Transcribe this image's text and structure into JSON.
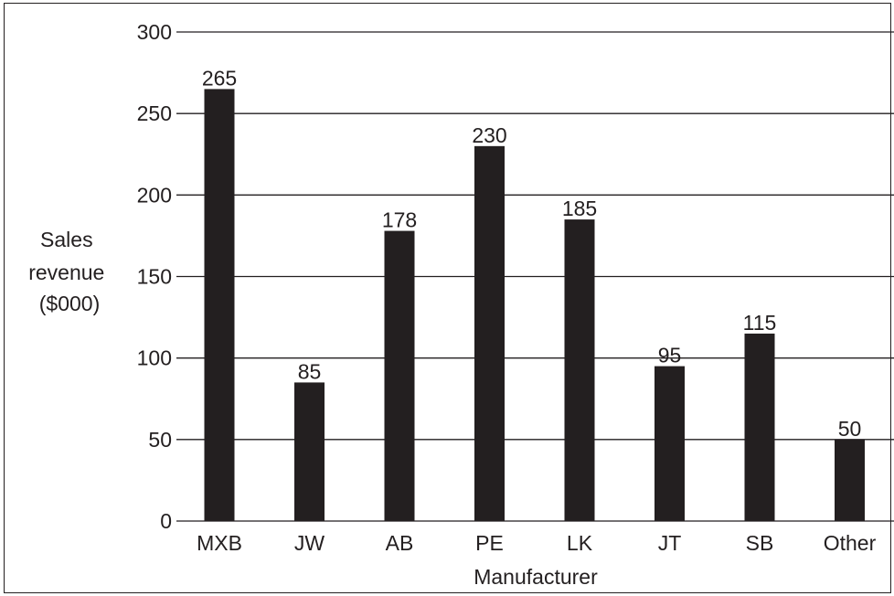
{
  "chart_data": {
    "type": "bar",
    "categories": [
      "MXB",
      "JW",
      "AB",
      "PE",
      "LK",
      "JT",
      "SB",
      "Other"
    ],
    "values": [
      265,
      85,
      178,
      230,
      185,
      95,
      115,
      50
    ],
    "data_labels": [
      "265",
      "85",
      "178",
      "230",
      "185",
      "95",
      "115",
      "50"
    ],
    "xlabel": "Manufacturer",
    "ylabel_lines": [
      "Sales",
      "revenue",
      "($000)"
    ],
    "ylim": [
      0,
      300
    ],
    "yticks": [
      0,
      50,
      100,
      150,
      200,
      250,
      300
    ],
    "grid": true,
    "colors": {
      "bar": "#231f20",
      "grid": "#231f20",
      "text": "#231f20",
      "background": "#ffffff"
    }
  }
}
